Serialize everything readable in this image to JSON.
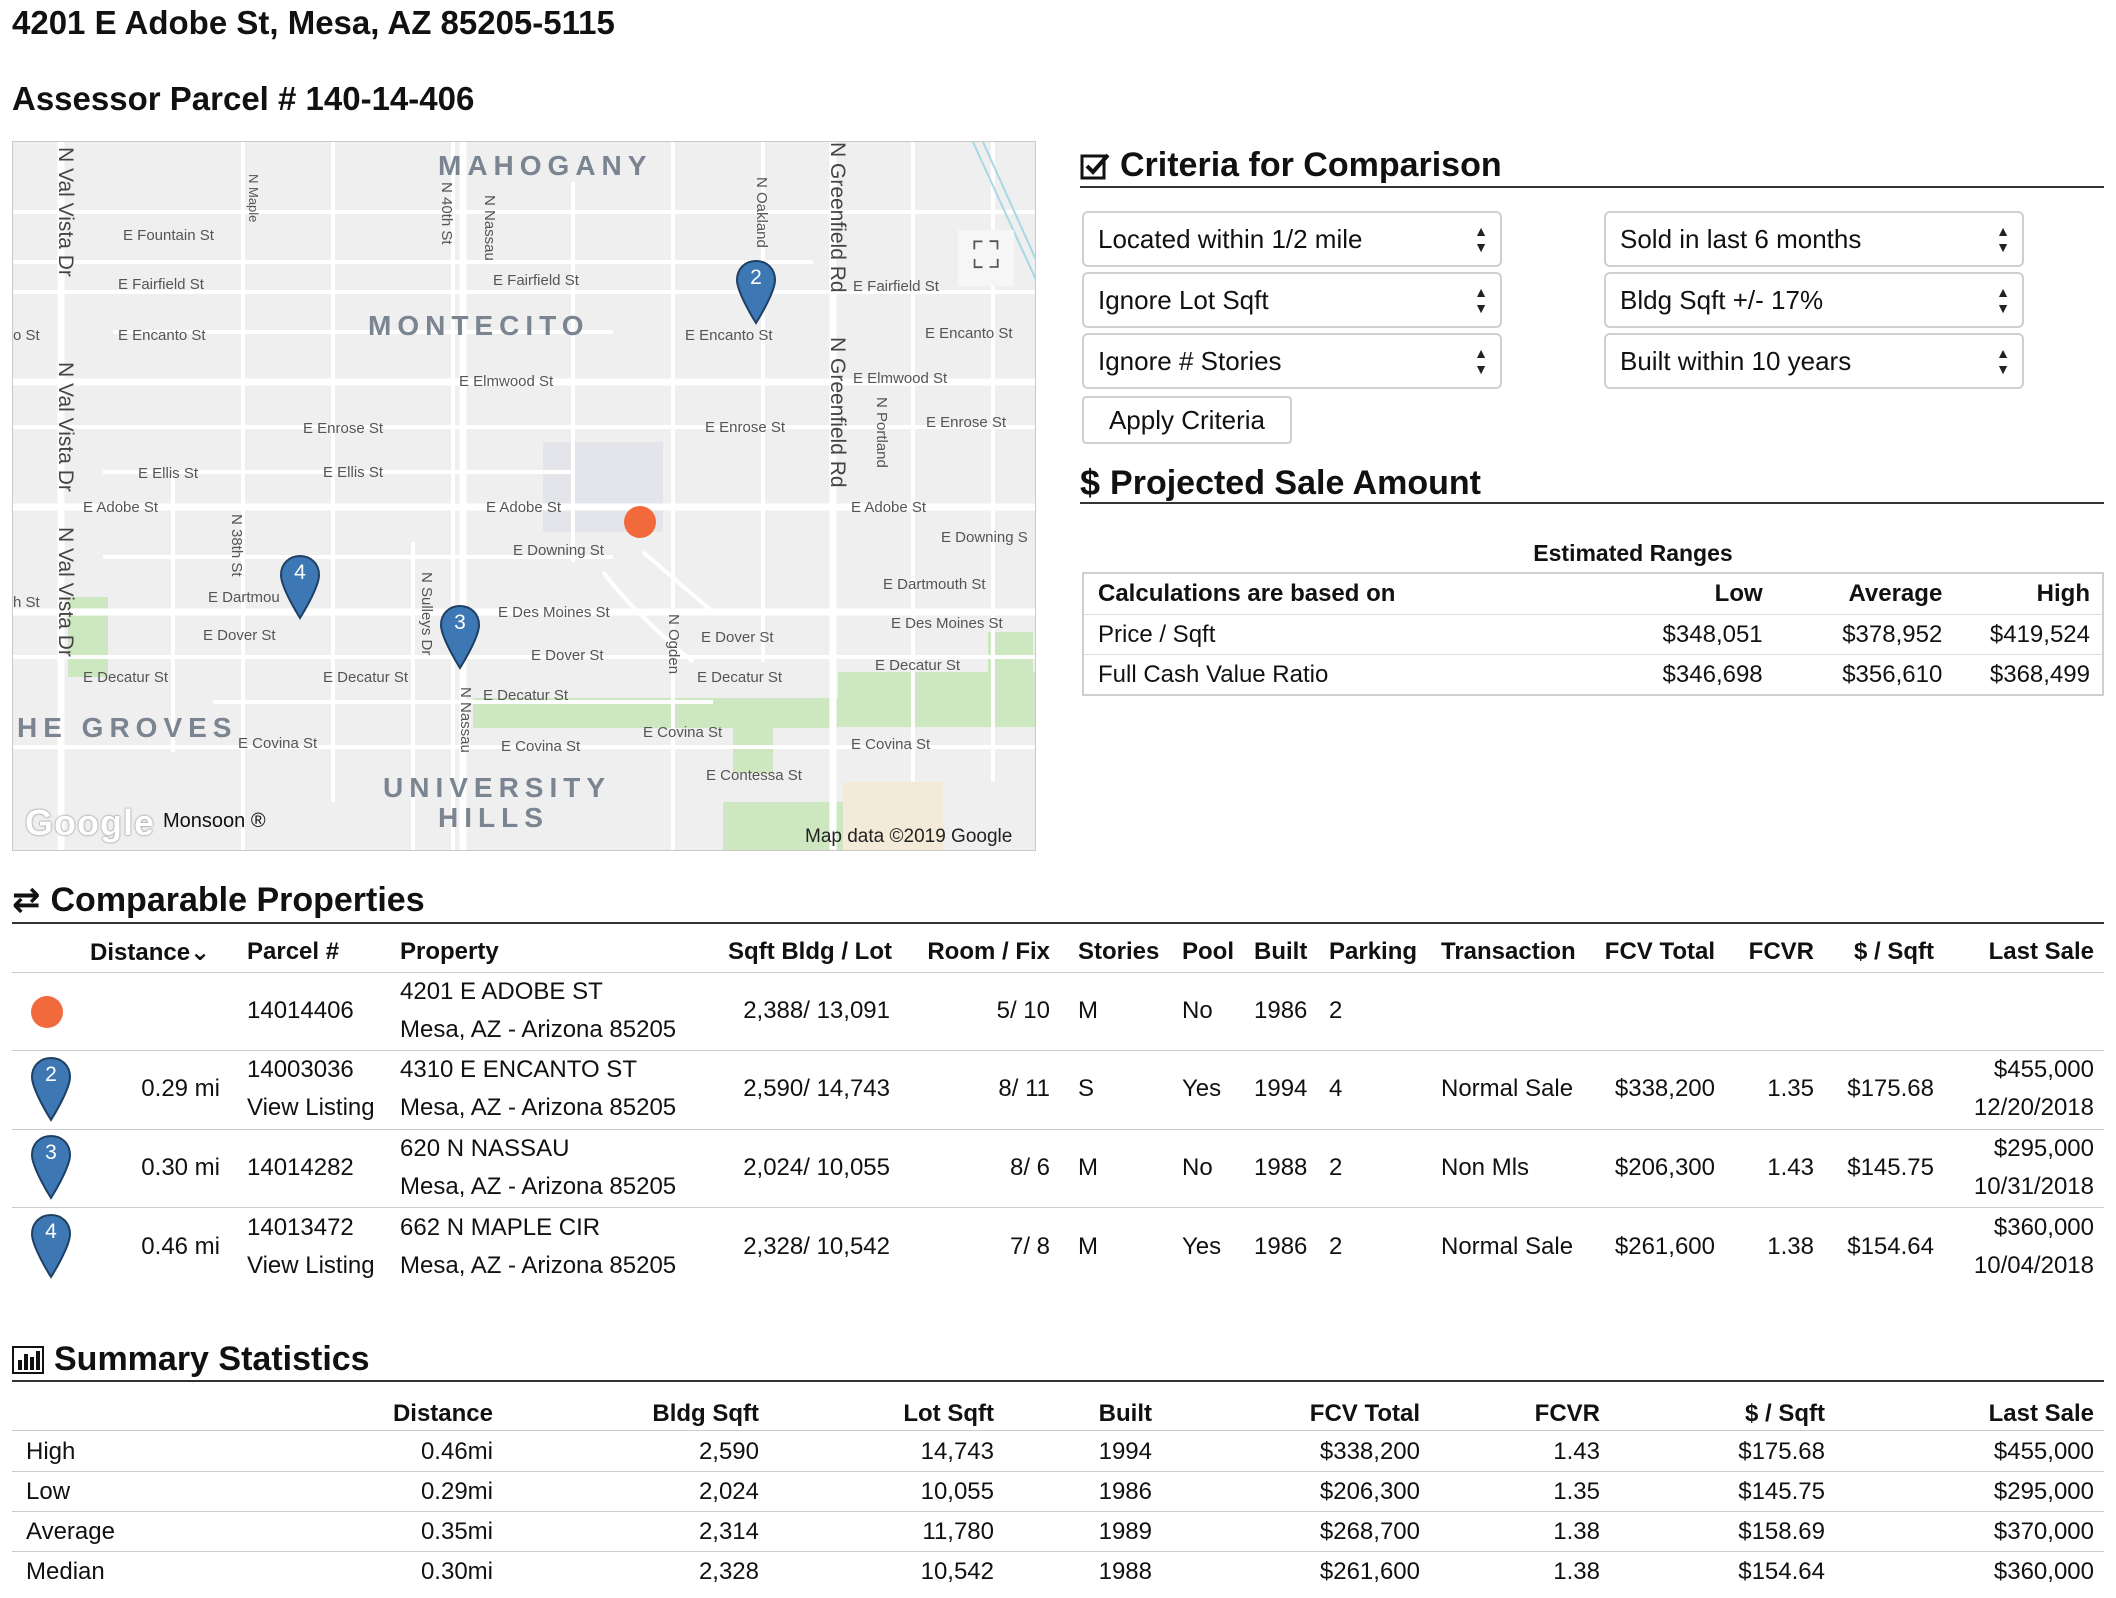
{
  "header": {
    "address": "4201 E Adobe St, Mesa, AZ 85205-5115",
    "parcel": "Assessor Parcel # 140-14-406"
  },
  "map": {
    "neighborhoods": [
      "MAHOGANY",
      "MONTECITO",
      "HE GROVES",
      "UNIVERSITY",
      "HILLS"
    ],
    "streets": {
      "fountain": "E Fountain St",
      "fairfield_w": "E Fairfield St",
      "fairfield_m": "E Fairfield St",
      "fairfield_e": "E Fairfield St",
      "encanto_w": "E Encanto St",
      "encanto_m": "E Encanto St",
      "encanto_e": "E Encanto St",
      "elmwood_m": "E Elmwood St",
      "elmwood_e": "E Elmwood St",
      "enrose_w": "E Enrose St",
      "enrose_m": "E Enrose St",
      "enrose_e": "E Enrose St",
      "ellis_w": "E Ellis St",
      "ellis_m": "E Ellis St",
      "adobe_w": "E Adobe St",
      "adobe_m": "E Adobe St",
      "adobe_e": "E Adobe St",
      "downing_m": "E Downing St",
      "downing_e": "E Downing S",
      "dartmouth_w": "E Dartmou",
      "dartmouth_e": "E Dartmouth St",
      "desmoines_m": "E Des Moines St",
      "desmoines_e": "E Des Moines St",
      "dover_w": "E Dover St",
      "dover_m": "E Dover St",
      "dover_e": "E Dover St",
      "decatur_w": "E Decatur St",
      "decatur_m1": "E Decatur St",
      "decatur_m2": "E Decatur St",
      "decatur_m3": "E Decatur St",
      "decatur_e": "E Decatur St",
      "covina_w": "E Covina St",
      "covina_m": "E Covina St",
      "covina_m2": "E Covina St",
      "covina_e": "E Covina St",
      "contessa": "E Contessa St",
      "st_w1": "o St",
      "st_w2": "h St",
      "val_vista_1": "N Val Vista Dr",
      "val_vista_2": "N Val Vista Dr",
      "val_vista_3": "N Val Vista Dr",
      "maple": "N Maple",
      "fortieth": "N 40th St",
      "nassau_n": "N Nassau",
      "nassau_s": "N Nassau",
      "oakland": "N Oakland",
      "greenfield_1": "N Greenfield Rd",
      "greenfield_2": "N Greenfield Rd",
      "portland": "N Portland",
      "thirty_eighth": "N 38th St",
      "sulleys": "N Sulleys Dr",
      "ogden": "N Ogden"
    },
    "footer_data": "Map data ©2019 Google",
    "monsoon": "Monsoon ®",
    "google": "Google",
    "fullscreen_glyph": "⛶",
    "pins": [
      "2",
      "3",
      "4"
    ]
  },
  "criteria": {
    "title": "Criteria for Comparison",
    "distance": "Located within 1/2 mile",
    "lot": "Ignore Lot Sqft",
    "stories": "Ignore # Stories",
    "sold": "Sold in last 6 months",
    "bldg": "Bldg Sqft +/- 17%",
    "built": "Built within 10 years",
    "apply": "Apply Criteria"
  },
  "projected": {
    "title": "Projected Sale Amount",
    "ranges_title": "Estimated Ranges",
    "headers": [
      "Calculations are based on",
      "Low",
      "Average",
      "High"
    ],
    "rows": [
      [
        "Price / Sqft",
        "$348,051",
        "$378,952",
        "$419,524"
      ],
      [
        "Full Cash Value Ratio",
        "$346,698",
        "$356,610",
        "$368,499"
      ]
    ]
  },
  "comparables": {
    "title": "Comparable Properties",
    "headers": {
      "distance": "Distance",
      "parcel": "Parcel #",
      "property": "Property",
      "sqft": "Sqft Bldg / Lot",
      "room": "Room / Fix",
      "stories": "Stories",
      "pool": "Pool",
      "built": "Built",
      "parking": "Parking",
      "transaction": "Transaction",
      "fcv": "FCV Total",
      "fcvr": "FCVR",
      "psqft": "$ / Sqft",
      "last": "Last Sale"
    },
    "rows": [
      {
        "pin": "",
        "distance": "",
        "parcel": "14014406",
        "listing": "",
        "street": "4201 E ADOBE ST",
        "city": "Mesa, AZ - Arizona  85205",
        "sqft": "2,388/ 13,091",
        "room": "5/ 10",
        "stories": "M",
        "pool": "No",
        "built": "1986",
        "parking": "2",
        "transaction": "",
        "fcv": "",
        "fcvr": "",
        "psqft": "",
        "last_price": "",
        "last_date": ""
      },
      {
        "pin": "2",
        "distance": "0.29 mi",
        "parcel": "14003036",
        "listing": "View Listing",
        "street": "4310 E ENCANTO ST",
        "city": "Mesa, AZ - Arizona  85205",
        "sqft": "2,590/ 14,743",
        "room": "8/ 11",
        "stories": "S",
        "pool": "Yes",
        "built": "1994",
        "parking": "4",
        "transaction": "Normal Sale",
        "fcv": "$338,200",
        "fcvr": "1.35",
        "psqft": "$175.68",
        "last_price": "$455,000",
        "last_date": "12/20/2018"
      },
      {
        "pin": "3",
        "distance": "0.30 mi",
        "parcel": "14014282",
        "listing": "",
        "street": "620 N NASSAU",
        "city": "Mesa, AZ - Arizona  85205",
        "sqft": "2,024/ 10,055",
        "room": "8/ 6",
        "stories": "M",
        "pool": "No",
        "built": "1988",
        "parking": "2",
        "transaction": "Non Mls",
        "fcv": "$206,300",
        "fcvr": "1.43",
        "psqft": "$145.75",
        "last_price": "$295,000",
        "last_date": "10/31/2018"
      },
      {
        "pin": "4",
        "distance": "0.46 mi",
        "parcel": "14013472",
        "listing": "View Listing",
        "street": "662 N MAPLE CIR",
        "city": "Mesa, AZ - Arizona  85205",
        "sqft": "2,328/ 10,542",
        "room": "7/ 8",
        "stories": "M",
        "pool": "Yes",
        "built": "1986",
        "parking": "2",
        "transaction": "Normal Sale",
        "fcv": "$261,600",
        "fcvr": "1.38",
        "psqft": "$154.64",
        "last_price": "$360,000",
        "last_date": "10/04/2018"
      }
    ]
  },
  "summary": {
    "title": "Summary Statistics",
    "headers": [
      "",
      "Distance",
      "Bldg Sqft",
      "Lot Sqft",
      "Built",
      "FCV Total",
      "FCVR",
      "$ / Sqft",
      "Last Sale"
    ],
    "rows": [
      [
        "High",
        "0.46mi",
        "2,590",
        "14,743",
        "1994",
        "$338,200",
        "1.43",
        "$175.68",
        "$455,000"
      ],
      [
        "Low",
        "0.29mi",
        "2,024",
        "10,055",
        "1986",
        "$206,300",
        "1.35",
        "$145.75",
        "$295,000"
      ],
      [
        "Average",
        "0.35mi",
        "2,314",
        "11,780",
        "1989",
        "$268,700",
        "1.38",
        "$158.69",
        "$370,000"
      ],
      [
        "Median",
        "0.30mi",
        "2,328",
        "10,542",
        "1988",
        "$261,600",
        "1.38",
        "$154.64",
        "$360,000"
      ]
    ]
  },
  "colors": {
    "subject_marker": "#f26a3b",
    "pin_fill": "#3d78b5",
    "park_green": "#cde8c1",
    "road": "#ffffff"
  }
}
